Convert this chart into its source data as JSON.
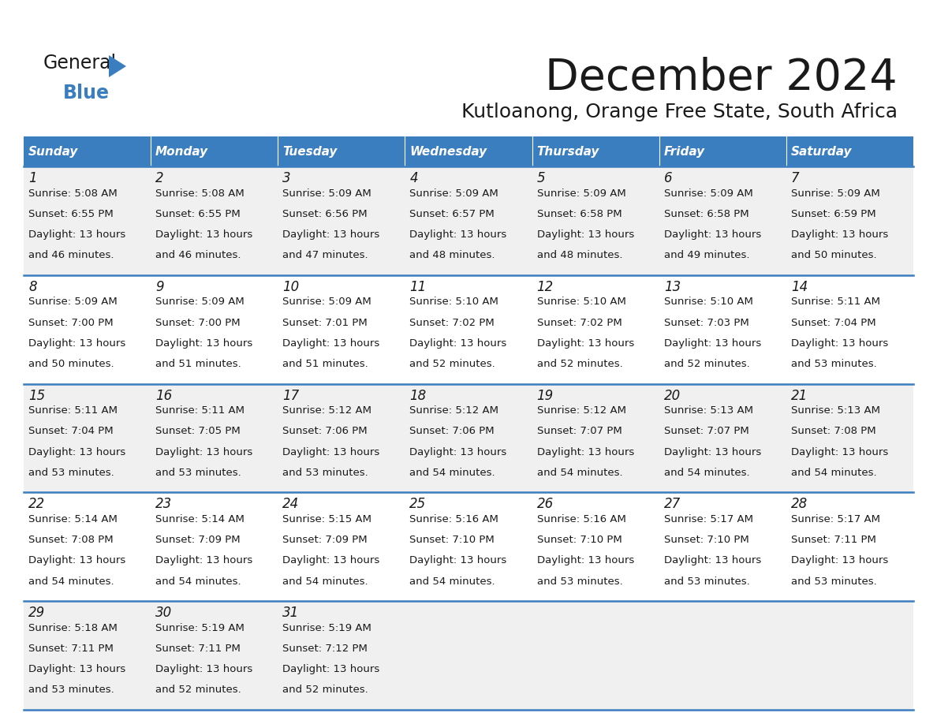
{
  "title": "December 2024",
  "subtitle": "Kutloanong, Orange Free State, South Africa",
  "header_color": "#3a7ebf",
  "header_text_color": "#ffffff",
  "cell_bg_odd": "#f0f0f0",
  "cell_bg_even": "#ffffff",
  "border_color": "#3a7ebf",
  "text_color": "#1a1a1a",
  "logo_general_color": "#1a1a1a",
  "logo_blue_color": "#3a7ebf",
  "logo_triangle_color": "#3a7ebf",
  "day_names": [
    "Sunday",
    "Monday",
    "Tuesday",
    "Wednesday",
    "Thursday",
    "Friday",
    "Saturday"
  ],
  "weeks": [
    [
      {
        "day": 1,
        "sunrise": "5:08 AM",
        "sunset": "6:55 PM",
        "daylight": "13 hours and 46 minutes."
      },
      {
        "day": 2,
        "sunrise": "5:08 AM",
        "sunset": "6:55 PM",
        "daylight": "13 hours and 46 minutes."
      },
      {
        "day": 3,
        "sunrise": "5:09 AM",
        "sunset": "6:56 PM",
        "daylight": "13 hours and 47 minutes."
      },
      {
        "day": 4,
        "sunrise": "5:09 AM",
        "sunset": "6:57 PM",
        "daylight": "13 hours and 48 minutes."
      },
      {
        "day": 5,
        "sunrise": "5:09 AM",
        "sunset": "6:58 PM",
        "daylight": "13 hours and 48 minutes."
      },
      {
        "day": 6,
        "sunrise": "5:09 AM",
        "sunset": "6:58 PM",
        "daylight": "13 hours and 49 minutes."
      },
      {
        "day": 7,
        "sunrise": "5:09 AM",
        "sunset": "6:59 PM",
        "daylight": "13 hours and 50 minutes."
      }
    ],
    [
      {
        "day": 8,
        "sunrise": "5:09 AM",
        "sunset": "7:00 PM",
        "daylight": "13 hours and 50 minutes."
      },
      {
        "day": 9,
        "sunrise": "5:09 AM",
        "sunset": "7:00 PM",
        "daylight": "13 hours and 51 minutes."
      },
      {
        "day": 10,
        "sunrise": "5:09 AM",
        "sunset": "7:01 PM",
        "daylight": "13 hours and 51 minutes."
      },
      {
        "day": 11,
        "sunrise": "5:10 AM",
        "sunset": "7:02 PM",
        "daylight": "13 hours and 52 minutes."
      },
      {
        "day": 12,
        "sunrise": "5:10 AM",
        "sunset": "7:02 PM",
        "daylight": "13 hours and 52 minutes."
      },
      {
        "day": 13,
        "sunrise": "5:10 AM",
        "sunset": "7:03 PM",
        "daylight": "13 hours and 52 minutes."
      },
      {
        "day": 14,
        "sunrise": "5:11 AM",
        "sunset": "7:04 PM",
        "daylight": "13 hours and 53 minutes."
      }
    ],
    [
      {
        "day": 15,
        "sunrise": "5:11 AM",
        "sunset": "7:04 PM",
        "daylight": "13 hours and 53 minutes."
      },
      {
        "day": 16,
        "sunrise": "5:11 AM",
        "sunset": "7:05 PM",
        "daylight": "13 hours and 53 minutes."
      },
      {
        "day": 17,
        "sunrise": "5:12 AM",
        "sunset": "7:06 PM",
        "daylight": "13 hours and 53 minutes."
      },
      {
        "day": 18,
        "sunrise": "5:12 AM",
        "sunset": "7:06 PM",
        "daylight": "13 hours and 54 minutes."
      },
      {
        "day": 19,
        "sunrise": "5:12 AM",
        "sunset": "7:07 PM",
        "daylight": "13 hours and 54 minutes."
      },
      {
        "day": 20,
        "sunrise": "5:13 AM",
        "sunset": "7:07 PM",
        "daylight": "13 hours and 54 minutes."
      },
      {
        "day": 21,
        "sunrise": "5:13 AM",
        "sunset": "7:08 PM",
        "daylight": "13 hours and 54 minutes."
      }
    ],
    [
      {
        "day": 22,
        "sunrise": "5:14 AM",
        "sunset": "7:08 PM",
        "daylight": "13 hours and 54 minutes."
      },
      {
        "day": 23,
        "sunrise": "5:14 AM",
        "sunset": "7:09 PM",
        "daylight": "13 hours and 54 minutes."
      },
      {
        "day": 24,
        "sunrise": "5:15 AM",
        "sunset": "7:09 PM",
        "daylight": "13 hours and 54 minutes."
      },
      {
        "day": 25,
        "sunrise": "5:16 AM",
        "sunset": "7:10 PM",
        "daylight": "13 hours and 54 minutes."
      },
      {
        "day": 26,
        "sunrise": "5:16 AM",
        "sunset": "7:10 PM",
        "daylight": "13 hours and 53 minutes."
      },
      {
        "day": 27,
        "sunrise": "5:17 AM",
        "sunset": "7:10 PM",
        "daylight": "13 hours and 53 minutes."
      },
      {
        "day": 28,
        "sunrise": "5:17 AM",
        "sunset": "7:11 PM",
        "daylight": "13 hours and 53 minutes."
      }
    ],
    [
      {
        "day": 29,
        "sunrise": "5:18 AM",
        "sunset": "7:11 PM",
        "daylight": "13 hours and 53 minutes."
      },
      {
        "day": 30,
        "sunrise": "5:19 AM",
        "sunset": "7:11 PM",
        "daylight": "13 hours and 52 minutes."
      },
      {
        "day": 31,
        "sunrise": "5:19 AM",
        "sunset": "7:12 PM",
        "daylight": "13 hours and 52 minutes."
      },
      null,
      null,
      null,
      null
    ]
  ]
}
